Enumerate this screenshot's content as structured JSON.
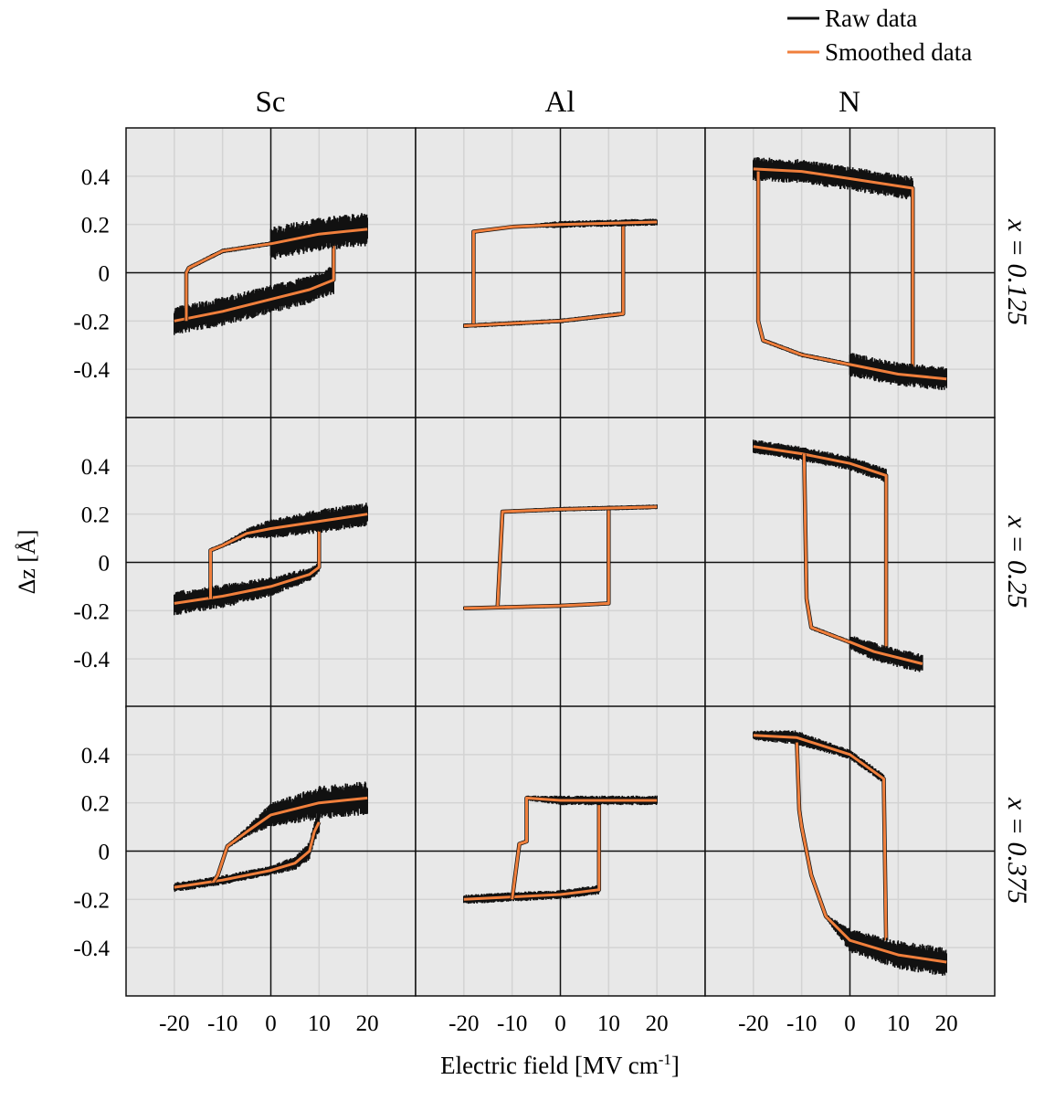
{
  "chart_data": {
    "type": "line",
    "legend": {
      "placement": "top-right",
      "entries": [
        {
          "label": "Raw data",
          "color": "#111111"
        },
        {
          "label": "Smoothed data",
          "color": "#F07F3C"
        }
      ]
    },
    "columns": [
      "Sc",
      "Al",
      "N"
    ],
    "rows": [
      "x = 0.125",
      "x = 0.25",
      "x = 0.375"
    ],
    "xlabel": "Electric field [MV cm",
    "xlabel_sup": "-1",
    "xlabel_end": "]",
    "ylabel": "Δz [Å]",
    "xlim": [
      -30,
      30
    ],
    "ylim": [
      -0.6,
      0.6
    ],
    "xticks": [
      "-20",
      "-10",
      "0",
      "10",
      "20"
    ],
    "xtick_values": [
      -20,
      -10,
      0,
      10,
      20
    ],
    "yticks": [
      "0.4",
      "0.2",
      "0",
      "-0.2",
      "-0.4"
    ],
    "ytick_values": [
      0.4,
      0.2,
      0,
      -0.2,
      -0.4
    ],
    "grid": true,
    "panel_background": "#E8E8E8",
    "panels": [
      {
        "row": 0,
        "col": 0,
        "branches": [
          [
            [
              -20,
              -0.2,
              0.06
            ],
            [
              -10,
              -0.16,
              0.06
            ],
            [
              0,
              -0.11,
              0.06
            ],
            [
              8,
              -0.07,
              0.06
            ],
            [
              13,
              -0.03,
              0.06
            ],
            [
              13,
              0.14,
              0
            ]
          ],
          [
            [
              20,
              0.18,
              0.07
            ],
            [
              10,
              0.16,
              0.07
            ],
            [
              0,
              0.12,
              0.07
            ],
            [
              -0.1,
              0.12,
              0.01
            ],
            [
              -10,
              0.09,
              0.01
            ],
            [
              -17,
              0.02,
              0.01
            ],
            [
              -17.5,
              0.0,
              0.01
            ],
            [
              -17.5,
              -0.2,
              0
            ]
          ]
        ]
      },
      {
        "row": 0,
        "col": 1,
        "branches": [
          [
            [
              -20,
              -0.22,
              0.01
            ],
            [
              0,
              -0.2,
              0.01
            ],
            [
              13,
              -0.17,
              0.01
            ],
            [
              13,
              0.2,
              0
            ]
          ],
          [
            [
              20,
              0.21,
              0.015
            ],
            [
              0,
              0.2,
              0.015
            ],
            [
              -10,
              0.19,
              0.005
            ],
            [
              -18,
              0.17,
              0.005
            ],
            [
              -18,
              -0.21,
              0
            ]
          ]
        ]
      },
      {
        "row": 0,
        "col": 2,
        "branches": [
          [
            [
              -20,
              0.43,
              0.05
            ],
            [
              -10,
              0.42,
              0.05
            ],
            [
              0,
              0.39,
              0.05
            ],
            [
              13,
              0.35,
              0.05
            ],
            [
              13,
              -0.4,
              0
            ]
          ],
          [
            [
              20,
              -0.44,
              0.05
            ],
            [
              10,
              -0.42,
              0.05
            ],
            [
              0,
              -0.38,
              0.05
            ],
            [
              -0.1,
              -0.38,
              0.01
            ],
            [
              -10,
              -0.34,
              0.01
            ],
            [
              -18,
              -0.28,
              0.01
            ],
            [
              -19,
              -0.2,
              0.005
            ],
            [
              -19,
              0.42,
              0
            ]
          ]
        ]
      },
      {
        "row": 1,
        "col": 0,
        "branches": [
          [
            [
              -20,
              -0.17,
              0.05
            ],
            [
              -10,
              -0.14,
              0.05
            ],
            [
              0,
              -0.1,
              0.04
            ],
            [
              8,
              -0.05,
              0.03
            ],
            [
              10,
              -0.02,
              0.02
            ],
            [
              10,
              0.14,
              0
            ]
          ],
          [
            [
              20,
              0.2,
              0.05
            ],
            [
              10,
              0.17,
              0.05
            ],
            [
              0,
              0.14,
              0.04
            ],
            [
              -5,
              0.12,
              0.02
            ],
            [
              -10,
              0.07,
              0.01
            ],
            [
              -12.5,
              0.05,
              0.01
            ],
            [
              -12.5,
              -0.15,
              0
            ]
          ]
        ]
      },
      {
        "row": 1,
        "col": 1,
        "branches": [
          [
            [
              -20,
              -0.19,
              0.008
            ],
            [
              0,
              -0.18,
              0.008
            ],
            [
              10,
              -0.17,
              0.008
            ],
            [
              10,
              0.22,
              0
            ]
          ],
          [
            [
              20,
              0.23,
              0.01
            ],
            [
              0,
              0.22,
              0.01
            ],
            [
              -12,
              0.21,
              0.008
            ],
            [
              -13,
              -0.18,
              0
            ]
          ]
        ]
      },
      {
        "row": 1,
        "col": 2,
        "branches": [
          [
            [
              -20,
              0.48,
              0.03
            ],
            [
              -10,
              0.45,
              0.03
            ],
            [
              0,
              0.41,
              0.03
            ],
            [
              7.5,
              0.36,
              0.03
            ],
            [
              7.5,
              -0.38,
              0
            ]
          ],
          [
            [
              15,
              -0.42,
              0.04
            ],
            [
              5,
              -0.37,
              0.04
            ],
            [
              0,
              -0.33,
              0.03
            ],
            [
              -0.1,
              -0.33,
              0.01
            ],
            [
              -8,
              -0.27,
              0.01
            ],
            [
              -9,
              -0.15,
              0.005
            ],
            [
              -9.5,
              0.45,
              0
            ]
          ]
        ]
      },
      {
        "row": 2,
        "col": 0,
        "branches": [
          [
            [
              -20,
              -0.15,
              0.02
            ],
            [
              -10,
              -0.12,
              0.02
            ],
            [
              0,
              -0.08,
              0.02
            ],
            [
              5,
              -0.05,
              0.03
            ],
            [
              8,
              0.0,
              0.04
            ],
            [
              9,
              0.08,
              0.04
            ],
            [
              10,
              0.12,
              0.05
            ]
          ],
          [
            [
              20,
              0.22,
              0.07
            ],
            [
              10,
              0.2,
              0.07
            ],
            [
              0,
              0.15,
              0.05
            ],
            [
              -5,
              0.08,
              0.02
            ],
            [
              -9,
              0.02,
              0.01
            ],
            [
              -11,
              -0.1,
              0.01
            ],
            [
              -12,
              -0.13,
              0
            ]
          ]
        ]
      },
      {
        "row": 2,
        "col": 1,
        "branches": [
          [
            [
              -20,
              -0.2,
              0.02
            ],
            [
              0,
              -0.18,
              0.02
            ],
            [
              8,
              -0.16,
              0.02
            ],
            [
              8,
              0.21,
              0
            ]
          ],
          [
            [
              20,
              0.21,
              0.02
            ],
            [
              0,
              0.21,
              0.02
            ],
            [
              -7,
              0.22,
              0.01
            ],
            [
              -7,
              0.04,
              0
            ],
            [
              -8.5,
              0.03,
              0
            ],
            [
              -10,
              -0.2,
              0
            ]
          ]
        ]
      },
      {
        "row": 2,
        "col": 2,
        "branches": [
          [
            [
              -20,
              0.48,
              0.02
            ],
            [
              -11,
              0.47,
              0.03
            ],
            [
              0,
              0.4,
              0.02
            ],
            [
              7,
              0.3,
              0.02
            ],
            [
              7.5,
              -0.37,
              0
            ]
          ],
          [
            [
              20,
              -0.46,
              0.06
            ],
            [
              10,
              -0.43,
              0.06
            ],
            [
              0,
              -0.37,
              0.05
            ],
            [
              -5,
              -0.27,
              0.01
            ],
            [
              -8,
              -0.1,
              0.01
            ],
            [
              -10,
              0.1,
              0.01
            ],
            [
              -10.5,
              0.17,
              0
            ],
            [
              -11,
              0.45,
              0
            ]
          ]
        ]
      }
    ]
  }
}
